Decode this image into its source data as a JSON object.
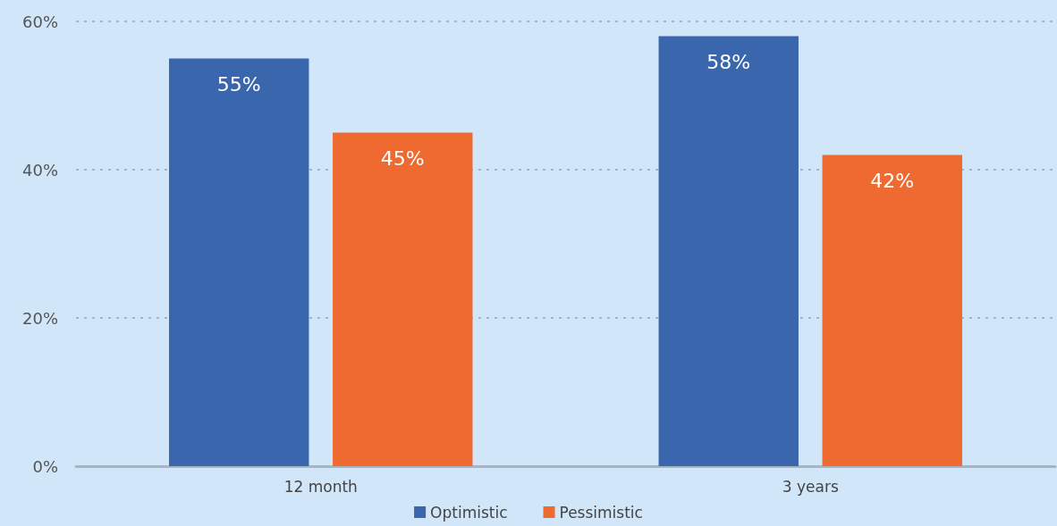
{
  "chart_data": {
    "type": "bar",
    "categories": [
      "12 month",
      "3 years"
    ],
    "series": [
      {
        "name": "Optimistic",
        "color": "#3a66ae",
        "values": [
          55,
          58
        ],
        "value_labels": [
          "55%",
          "58%"
        ]
      },
      {
        "name": "Pessimistic",
        "color": "#ee6a30",
        "values": [
          45,
          42
        ],
        "value_labels": [
          "45%",
          "42%"
        ]
      }
    ],
    "ylim": [
      0,
      60
    ],
    "yticks": [
      {
        "value": 0,
        "label": "0%"
      },
      {
        "value": 20,
        "label": "20%"
      },
      {
        "value": 40,
        "label": "40%"
      },
      {
        "value": 60,
        "label": "60%"
      }
    ],
    "grid": "y",
    "legend": "bottom"
  }
}
